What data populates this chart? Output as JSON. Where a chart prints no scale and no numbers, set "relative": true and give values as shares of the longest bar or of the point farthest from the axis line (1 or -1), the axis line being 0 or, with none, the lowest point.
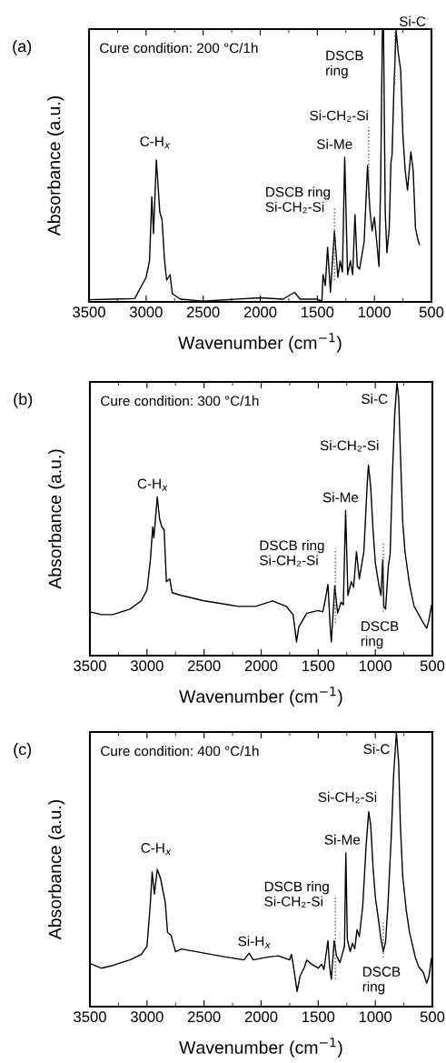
{
  "chart_data": [
    {
      "type": "line",
      "title": "(a)",
      "xlabel": "Wavenumber (cm$^{−1}$)",
      "ylabel": "Absorbance (a.u.)",
      "relative": true,
      "xlim": [
        3500,
        500
      ],
      "xticks": [
        3500,
        3000,
        2500,
        2000,
        1500,
        1000,
        500
      ],
      "tick_labels": "x",
      "grid": false,
      "legend": false,
      "series": [
        {
          "color": "#000000",
          "x": [
            3500,
            3300,
            3100,
            3000,
            2970,
            2950,
            2935,
            2910,
            2880,
            2860,
            2840,
            2820,
            2790,
            2770,
            2700,
            2500,
            2000,
            1800,
            1700,
            1650,
            1500,
            1460,
            1450,
            1430,
            1410,
            1385,
            1350,
            1320,
            1300,
            1280,
            1260,
            1235,
            1210,
            1190,
            1170,
            1150,
            1130,
            1090,
            1060,
            1040,
            1020,
            1000,
            975,
            960,
            945,
            930,
            920,
            905,
            890,
            870,
            855,
            845,
            830,
            810,
            790,
            770,
            750,
            730,
            710,
            680,
            660,
            640,
            620,
            605
          ],
          "values": [
            0.008,
            0.01,
            0.012,
            0.09,
            0.15,
            0.385,
            0.25,
            0.52,
            0.33,
            0.3,
            0.16,
            0.08,
            0.1,
            0.03,
            0.01,
            0.003,
            0.015,
            0.01,
            0.035,
            0.01,
            0.01,
            0.002,
            0.1,
            0.06,
            0.2,
            0.035,
            0.26,
            0.09,
            0.15,
            0.11,
            0.53,
            0.1,
            0.15,
            0.1,
            0.32,
            0.13,
            0.12,
            0.22,
            0.5,
            0.34,
            0.26,
            0.31,
            0.2,
            0.13,
            0.44,
            1.0,
            1.0,
            0.33,
            0.18,
            0.27,
            0.51,
            0.54,
            0.77,
            0.995,
            0.91,
            0.85,
            0.61,
            0.48,
            0.41,
            0.55,
            0.48,
            0.27,
            0.23,
            0.21
          ]
        },
        {
          "color": "#555555",
          "line_style": "dotted",
          "x": [
            1350,
            1350
          ],
          "values": [
            0.08,
            0.35
          ]
        },
        {
          "color": "#555555",
          "line_style": "dotted",
          "x": [
            1050,
            1050
          ],
          "values": [
            0.38,
            0.64
          ]
        },
        {
          "color": "#555555",
          "line_style": "dotted",
          "x": [
            820,
            820
          ],
          "values": [
            0.8,
            1.0
          ]
        }
      ],
      "annotations": [
        "Cure condition: 200 °C/1h",
        "C-H$_{x}$",
        "DSCB ring\nSi-CH₂-Si",
        "Si-Me",
        "Si-CH₂-Si",
        "DSCB\nring",
        "Si-C"
      ]
    },
    {
      "type": "line",
      "title": "(b)",
      "xlabel": "Wavenumber (cm$^{−1}$)",
      "ylabel": "Absorbance (a.u.)",
      "relative": true,
      "xlim": [
        3500,
        500
      ],
      "xticks": [
        3500,
        3000,
        2500,
        2000,
        1500,
        1000,
        500
      ],
      "tick_labels": "x",
      "grid": false,
      "legend": false,
      "series": [
        {
          "color": "#000000",
          "x": [
            3500,
            3400,
            3300,
            3150,
            3050,
            3000,
            2970,
            2950,
            2940,
            2910,
            2890,
            2870,
            2850,
            2830,
            2800,
            2780,
            2700,
            2500,
            2200,
            2050,
            1900,
            1780,
            1720,
            1690,
            1670,
            1600,
            1500,
            1460,
            1440,
            1415,
            1395,
            1385,
            1355,
            1330,
            1300,
            1280,
            1260,
            1240,
            1210,
            1190,
            1165,
            1140,
            1100,
            1070,
            1060,
            1040,
            1020,
            1000,
            970,
            950,
            935,
            925,
            910,
            885,
            870,
            850,
            830,
            810,
            795,
            780,
            760,
            740,
            700,
            660,
            620,
            580,
            550,
            530,
            510,
            500
          ],
          "values": [
            0.16,
            0.15,
            0.15,
            0.17,
            0.2,
            0.24,
            0.35,
            0.47,
            0.43,
            0.58,
            0.5,
            0.47,
            0.46,
            0.27,
            0.28,
            0.23,
            0.22,
            0.2,
            0.18,
            0.18,
            0.2,
            0.18,
            0.15,
            0.05,
            0.105,
            0.155,
            0.165,
            0.16,
            0.2,
            0.26,
            0.105,
            0.05,
            0.255,
            0.155,
            0.195,
            0.185,
            0.53,
            0.22,
            0.27,
            0.25,
            0.38,
            0.28,
            0.38,
            0.635,
            0.695,
            0.615,
            0.46,
            0.34,
            0.26,
            0.22,
            0.35,
            0.18,
            0.17,
            0.33,
            0.37,
            0.66,
            0.88,
            1.0,
            0.94,
            0.74,
            0.49,
            0.38,
            0.26,
            0.18,
            0.15,
            0.12,
            0.1,
            0.13,
            0.18,
            0.19
          ]
        },
        {
          "color": "#555555",
          "line_style": "dotted",
          "x": [
            1350,
            1350
          ],
          "values": [
            0.12,
            0.39
          ]
        },
        {
          "color": "#555555",
          "line_style": "dotted",
          "x": [
            930,
            930
          ],
          "values": [
            0.16,
            0.41
          ]
        }
      ],
      "annotations": [
        "Cure condition: 300 °C/1h",
        "C-H$_{x}$",
        "DSCB ring\nSi-CH₂-Si",
        "Si-Me",
        "Si-CH₂-Si",
        "Si-C",
        "DSCB\nring"
      ]
    },
    {
      "type": "line",
      "title": "(c)",
      "xlabel": "Wavenumber (cm$^{−1}$)",
      "ylabel": "Absorbance (a.u.)",
      "relative": true,
      "xlim": [
        3500,
        500
      ],
      "xticks": [
        3500,
        3000,
        2500,
        2000,
        1500,
        1000,
        500
      ],
      "tick_labels": "x",
      "grid": false,
      "legend": false,
      "series": [
        {
          "color": "#000000",
          "x": [
            3500,
            3400,
            3300,
            3150,
            3050,
            3000,
            2970,
            2955,
            2935,
            2910,
            2880,
            2860,
            2840,
            2820,
            2790,
            2750,
            2700,
            2500,
            2300,
            2150,
            2105,
            2070,
            1950,
            1850,
            1750,
            1735,
            1720,
            1685,
            1660,
            1620,
            1600,
            1560,
            1500,
            1470,
            1450,
            1415,
            1400,
            1385,
            1360,
            1340,
            1310,
            1290,
            1270,
            1258,
            1245,
            1220,
            1200,
            1180,
            1160,
            1140,
            1110,
            1080,
            1058,
            1040,
            1020,
            1000,
            970,
            950,
            930,
            910,
            890,
            860,
            840,
            815,
            795,
            780,
            760,
            730,
            700,
            680,
            650,
            620,
            580,
            550,
            530,
            510,
            500
          ],
          "values": [
            0.157,
            0.14,
            0.15,
            0.17,
            0.19,
            0.22,
            0.38,
            0.49,
            0.41,
            0.5,
            0.465,
            0.42,
            0.38,
            0.27,
            0.26,
            0.2,
            0.21,
            0.195,
            0.18,
            0.17,
            0.195,
            0.17,
            0.18,
            0.185,
            0.17,
            0.19,
            0.155,
            0.055,
            0.11,
            0.145,
            0.17,
            0.155,
            0.14,
            0.155,
            0.135,
            0.24,
            0.145,
            0.1,
            0.24,
            0.185,
            0.16,
            0.19,
            0.22,
            0.56,
            0.245,
            0.2,
            0.23,
            0.21,
            0.28,
            0.255,
            0.365,
            0.59,
            0.71,
            0.66,
            0.51,
            0.4,
            0.31,
            0.245,
            0.2,
            0.235,
            0.365,
            0.62,
            0.84,
            1.0,
            0.885,
            0.66,
            0.475,
            0.355,
            0.27,
            0.235,
            0.18,
            0.145,
            0.125,
            0.085,
            0.11,
            0.17,
            0.185
          ]
        },
        {
          "color": "#555555",
          "line_style": "dotted",
          "x": [
            1350,
            1350
          ],
          "values": [
            0.1,
            0.4
          ]
        },
        {
          "color": "#555555",
          "line_style": "dotted",
          "x": [
            930,
            930
          ],
          "values": [
            0.18,
            0.31
          ]
        }
      ],
      "annotations": [
        "Cure condition: 400 °C/1h",
        "C-H$_{x}$",
        "Si-H$_{x}$",
        "DSCB ring\nSi-CH₂-Si",
        "Si-Me",
        "Si-CH₂-Si",
        "Si-C",
        "DSCB\nring"
      ]
    }
  ]
}
